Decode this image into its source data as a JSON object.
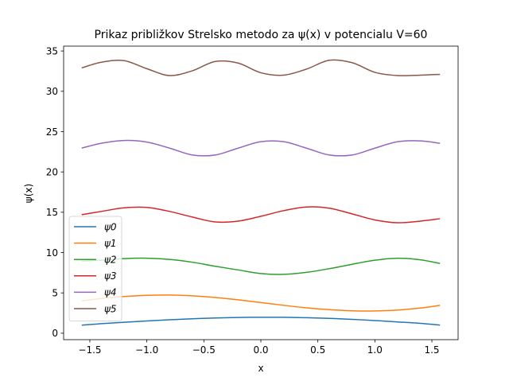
{
  "chart_data": {
    "type": "line",
    "title": "Prikaz približkov Strelsko metodo za ψ(x) v potencialu V=60",
    "xlabel": "x",
    "ylabel": "ψ(x)",
    "xlim": [
      -1.73,
      1.73
    ],
    "ylim": [
      -0.8,
      35.6
    ],
    "xticks": [
      -1.5,
      -1.0,
      -0.5,
      0.0,
      0.5,
      1.0,
      1.5
    ],
    "xtick_labels": [
      "−1.5",
      "−1.0",
      "−0.5",
      "0.0",
      "0.5",
      "1.0",
      "1.5"
    ],
    "yticks": [
      0,
      5,
      10,
      15,
      20,
      25,
      30,
      35
    ],
    "ytick_labels": [
      "0",
      "5",
      "10",
      "15",
      "20",
      "25",
      "30",
      "35"
    ],
    "grid": false,
    "legend_position": "lower-left",
    "x": [
      -1.571,
      -1.4,
      -1.2,
      -1.0,
      -0.8,
      -0.6,
      -0.4,
      -0.2,
      0.0,
      0.2,
      0.4,
      0.6,
      0.8,
      1.0,
      1.2,
      1.4,
      1.571
    ],
    "series": [
      {
        "name": "ψ0",
        "color": "#1f77b4",
        "values": [
          1.0,
          1.18,
          1.36,
          1.52,
          1.67,
          1.79,
          1.89,
          1.95,
          1.98,
          1.97,
          1.92,
          1.84,
          1.72,
          1.57,
          1.4,
          1.22,
          1.0
        ]
      },
      {
        "name": "ψ1",
        "color": "#ff7f0e",
        "values": [
          4.0,
          4.3,
          4.55,
          4.7,
          4.74,
          4.64,
          4.43,
          4.14,
          3.8,
          3.46,
          3.15,
          2.92,
          2.78,
          2.76,
          2.88,
          3.12,
          3.45
        ]
      },
      {
        "name": "ψ2",
        "color": "#2ca02c",
        "values": [
          8.95,
          9.05,
          9.25,
          9.3,
          9.15,
          8.8,
          8.3,
          7.85,
          7.4,
          7.3,
          7.55,
          8.0,
          8.55,
          9.05,
          9.3,
          9.1,
          8.65
        ]
      },
      {
        "name": "ψ3",
        "color": "#d62728",
        "values": [
          14.7,
          15.1,
          15.55,
          15.6,
          15.1,
          14.4,
          13.8,
          13.9,
          14.5,
          15.2,
          15.65,
          15.5,
          14.8,
          14.05,
          13.7,
          13.9,
          14.2
        ]
      },
      {
        "name": "ψ4",
        "color": "#9467bd",
        "values": [
          22.95,
          23.55,
          23.9,
          23.7,
          22.95,
          22.1,
          22.1,
          22.95,
          23.75,
          23.75,
          22.95,
          22.1,
          22.1,
          22.95,
          23.75,
          23.85,
          23.55
        ]
      },
      {
        "name": "ψ5",
        "color": "#8c564b",
        "values": [
          32.9,
          33.6,
          33.8,
          32.8,
          31.95,
          32.55,
          33.7,
          33.5,
          32.3,
          32.0,
          32.75,
          33.85,
          33.55,
          32.35,
          31.95,
          32.0,
          32.1
        ]
      }
    ]
  }
}
